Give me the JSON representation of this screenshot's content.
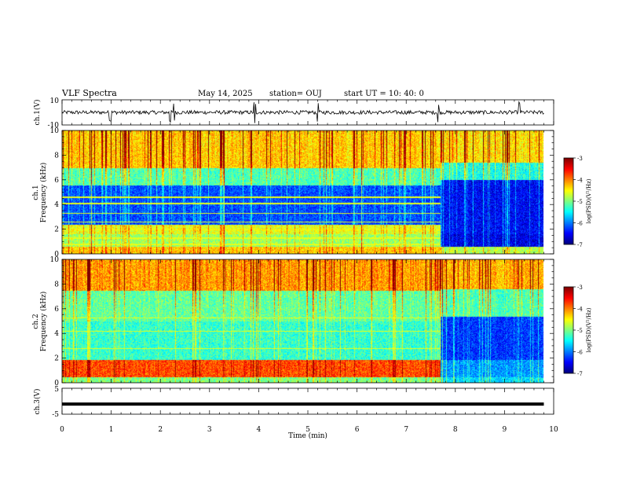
{
  "header": {
    "title": "VLF Spectra",
    "date": "May 14, 2025",
    "station": "station= OUJ",
    "start": "start  UT =  10: 40: 0"
  },
  "colorbar": {
    "label": "log(PSD)(V²/Hz)",
    "ticks": [
      "-3",
      "-4",
      "-5",
      "-6",
      "-7"
    ]
  },
  "chart_data": [
    {
      "type": "line",
      "panel": "ch.1 waveform",
      "ylabel": "ch.1(V)",
      "ylim": [
        -10,
        10
      ],
      "yticks": [
        "10",
        "-10"
      ],
      "x_units": "min",
      "baseline": 0,
      "noise_amplitude": 1.5,
      "spike_times": [
        0.98,
        2.2,
        2.28,
        3.92,
        5.2,
        7.65,
        9.3
      ]
    },
    {
      "type": "heatmap",
      "panel": "ch.1 spectrogram",
      "ylabel": "ch.1",
      "ylabel2": "Frequency (kHz)",
      "ylim": [
        0,
        10
      ],
      "yticks": [
        "0",
        "2",
        "4",
        "6",
        "8",
        "10"
      ],
      "xlim": [
        0,
        10
      ],
      "data_end_min": 9.8,
      "transition_min": 7.7,
      "bands_before": [
        {
          "f0": 0.0,
          "f1": 0.6,
          "level": -4.3
        },
        {
          "f0": 0.6,
          "f1": 1.6,
          "level": -4.9
        },
        {
          "f0": 1.6,
          "f1": 2.4,
          "level": -4.6
        },
        {
          "f0": 2.4,
          "f1": 5.6,
          "level": -6.2
        },
        {
          "f0": 5.6,
          "f1": 7.0,
          "level": -5.2
        },
        {
          "f0": 7.0,
          "f1": 10.0,
          "level": -4.3
        }
      ],
      "bands_after": [
        {
          "f0": 0.0,
          "f1": 0.6,
          "level": -4.8
        },
        {
          "f0": 0.6,
          "f1": 1.6,
          "level": -6.6
        },
        {
          "f0": 1.6,
          "f1": 6.0,
          "level": -6.5
        },
        {
          "f0": 6.0,
          "f1": 7.4,
          "level": -5.4
        },
        {
          "f0": 7.4,
          "f1": 10.0,
          "level": -4.4
        }
      ],
      "lines_khz": [
        0.8,
        1.3,
        2.0,
        2.6,
        3.3,
        4.1,
        4.6
      ]
    },
    {
      "type": "heatmap",
      "panel": "ch.2 spectrogram",
      "ylabel": "ch.2",
      "ylabel2": "Frequency (kHz)",
      "ylim": [
        0,
        10
      ],
      "yticks": [
        "0",
        "2",
        "4",
        "6",
        "8",
        "10"
      ],
      "xlim": [
        0,
        10
      ],
      "data_end_min": 9.8,
      "transition_min": 7.7,
      "bands_before": [
        {
          "f0": 0.0,
          "f1": 0.5,
          "level": -5.0
        },
        {
          "f0": 0.5,
          "f1": 1.9,
          "level": -3.8
        },
        {
          "f0": 1.9,
          "f1": 5.0,
          "level": -5.3
        },
        {
          "f0": 5.0,
          "f1": 7.5,
          "level": -5.1
        },
        {
          "f0": 7.5,
          "f1": 10.0,
          "level": -4.1
        }
      ],
      "bands_after": [
        {
          "f0": 0.0,
          "f1": 0.5,
          "level": -5.6
        },
        {
          "f0": 0.5,
          "f1": 1.9,
          "level": -5.9
        },
        {
          "f0": 1.9,
          "f1": 5.4,
          "level": -6.3
        },
        {
          "f0": 5.4,
          "f1": 7.6,
          "level": -5.2
        },
        {
          "f0": 7.6,
          "f1": 10.0,
          "level": -4.2
        }
      ],
      "lines_khz": [
        1.2,
        1.6,
        2.8,
        4.2,
        5.3
      ]
    },
    {
      "type": "line",
      "panel": "ch.3 waveform",
      "ylabel": "ch.3(V)",
      "ylim": [
        -5,
        5
      ],
      "yticks": [
        "5",
        "-5"
      ],
      "level": -1.1,
      "xlabel": "Time (min)",
      "xlim": [
        0,
        10
      ],
      "xticks": [
        "0",
        "1",
        "2",
        "3",
        "4",
        "5",
        "6",
        "7",
        "8",
        "9",
        "10"
      ]
    }
  ]
}
